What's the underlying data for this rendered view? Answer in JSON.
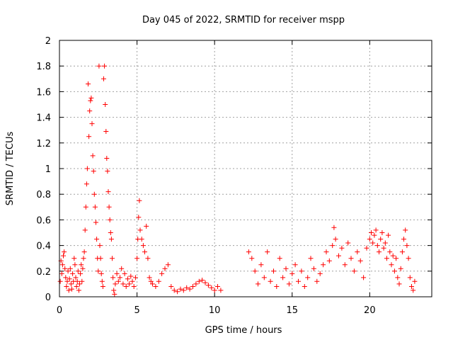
{
  "chart_data": {
    "type": "scatter",
    "title": "Day 045 of 2022, SRMTID for receiver mspp",
    "xlabel": "GPS time / hours",
    "ylabel": "SRMTID / TECUs",
    "xlim": [
      0,
      24
    ],
    "ylim": [
      0,
      2
    ],
    "xticks": [
      0,
      5,
      10,
      15,
      20
    ],
    "xtick_labels": [
      "0",
      "5",
      "10",
      "15",
      "20"
    ],
    "yticks": [
      0,
      0.2,
      0.4,
      0.6,
      0.8,
      1,
      1.2,
      1.4,
      1.6,
      1.8,
      2
    ],
    "ytick_labels": [
      "0",
      "0.2",
      "0.4",
      "0.6",
      "0.8",
      "1",
      "1.2",
      "1.4",
      "1.6",
      "1.8",
      "2"
    ],
    "grid": true,
    "marker": "plus",
    "color": "#ff0000",
    "series": [
      {
        "name": "SRMTID",
        "points": [
          [
            0.05,
            0.12
          ],
          [
            0.1,
            0.28
          ],
          [
            0.15,
            0.18
          ],
          [
            0.2,
            0.25
          ],
          [
            0.25,
            0.32
          ],
          [
            0.3,
            0.35
          ],
          [
            0.35,
            0.22
          ],
          [
            0.4,
            0.15
          ],
          [
            0.45,
            0.08
          ],
          [
            0.5,
            0.12
          ],
          [
            0.55,
            0.2
          ],
          [
            0.6,
            0.05
          ],
          [
            0.65,
            0.14
          ],
          [
            0.7,
            0.22
          ],
          [
            0.75,
            0.1
          ],
          [
            0.8,
            0.06
          ],
          [
            0.85,
            0.18
          ],
          [
            0.9,
            0.12
          ],
          [
            0.95,
            0.3
          ],
          [
            1.0,
            0.25
          ],
          [
            1.05,
            0.15
          ],
          [
            1.1,
            0.08
          ],
          [
            1.15,
            0.12
          ],
          [
            1.2,
            0.2
          ],
          [
            1.25,
            0.05
          ],
          [
            1.3,
            0.1
          ],
          [
            1.35,
            0.18
          ],
          [
            1.4,
            0.25
          ],
          [
            1.45,
            0.12
          ],
          [
            1.5,
            0.22
          ],
          [
            1.55,
            0.3
          ],
          [
            1.6,
            0.35
          ],
          [
            1.65,
            0.52
          ],
          [
            1.7,
            0.7
          ],
          [
            1.75,
            0.88
          ],
          [
            1.8,
            1.0
          ],
          [
            1.85,
            1.66
          ],
          [
            1.9,
            1.25
          ],
          [
            1.95,
            1.45
          ],
          [
            2.0,
            1.53
          ],
          [
            2.05,
            1.55
          ],
          [
            2.1,
            1.35
          ],
          [
            2.15,
            1.1
          ],
          [
            2.2,
            0.98
          ],
          [
            2.25,
            0.8
          ],
          [
            2.3,
            0.7
          ],
          [
            2.35,
            0.58
          ],
          [
            2.4,
            0.45
          ],
          [
            2.45,
            0.3
          ],
          [
            2.5,
            0.2
          ],
          [
            2.55,
            1.8
          ],
          [
            2.6,
            0.4
          ],
          [
            2.65,
            0.3
          ],
          [
            2.7,
            0.18
          ],
          [
            2.75,
            0.12
          ],
          [
            2.8,
            0.08
          ],
          [
            2.85,
            1.7
          ],
          [
            2.9,
            1.8
          ],
          [
            2.95,
            1.5
          ],
          [
            3.0,
            1.29
          ],
          [
            3.05,
            1.08
          ],
          [
            3.1,
            0.98
          ],
          [
            3.15,
            0.82
          ],
          [
            3.2,
            0.7
          ],
          [
            3.25,
            0.6
          ],
          [
            3.3,
            0.5
          ],
          [
            3.35,
            0.45
          ],
          [
            3.4,
            0.3
          ],
          [
            3.45,
            0.15
          ],
          [
            3.5,
            0.05
          ],
          [
            3.55,
            0.02
          ],
          [
            3.6,
            0.1
          ],
          [
            3.7,
            0.18
          ],
          [
            3.8,
            0.12
          ],
          [
            3.9,
            0.15
          ],
          [
            4.0,
            0.22
          ],
          [
            4.1,
            0.1
          ],
          [
            4.2,
            0.18
          ],
          [
            4.3,
            0.08
          ],
          [
            4.4,
            0.14
          ],
          [
            4.5,
            0.1
          ],
          [
            4.6,
            0.16
          ],
          [
            4.7,
            0.12
          ],
          [
            4.8,
            0.08
          ],
          [
            4.9,
            0.15
          ],
          [
            5.0,
            0.3
          ],
          [
            5.05,
            0.45
          ],
          [
            5.1,
            0.62
          ],
          [
            5.15,
            0.75
          ],
          [
            5.2,
            0.52
          ],
          [
            5.3,
            0.45
          ],
          [
            5.4,
            0.4
          ],
          [
            5.5,
            0.35
          ],
          [
            5.6,
            0.55
          ],
          [
            5.7,
            0.3
          ],
          [
            5.8,
            0.15
          ],
          [
            5.9,
            0.12
          ],
          [
            6.0,
            0.1
          ],
          [
            6.2,
            0.08
          ],
          [
            6.4,
            0.12
          ],
          [
            6.6,
            0.18
          ],
          [
            6.8,
            0.22
          ],
          [
            7.0,
            0.25
          ],
          [
            7.2,
            0.08
          ],
          [
            7.4,
            0.05
          ],
          [
            7.6,
            0.04
          ],
          [
            7.8,
            0.06
          ],
          [
            8.0,
            0.05
          ],
          [
            8.2,
            0.07
          ],
          [
            8.4,
            0.06
          ],
          [
            8.6,
            0.08
          ],
          [
            8.8,
            0.1
          ],
          [
            9.0,
            0.12
          ],
          [
            9.2,
            0.13
          ],
          [
            9.4,
            0.11
          ],
          [
            9.6,
            0.09
          ],
          [
            9.8,
            0.07
          ],
          [
            10.0,
            0.05
          ],
          [
            10.2,
            0.08
          ],
          [
            10.4,
            0.05
          ],
          [
            12.2,
            0.35
          ],
          [
            12.4,
            0.3
          ],
          [
            12.6,
            0.2
          ],
          [
            12.8,
            0.1
          ],
          [
            13.0,
            0.25
          ],
          [
            13.2,
            0.15
          ],
          [
            13.4,
            0.35
          ],
          [
            13.6,
            0.12
          ],
          [
            13.8,
            0.2
          ],
          [
            14.0,
            0.08
          ],
          [
            14.2,
            0.3
          ],
          [
            14.4,
            0.15
          ],
          [
            14.6,
            0.22
          ],
          [
            14.8,
            0.1
          ],
          [
            15.0,
            0.18
          ],
          [
            15.2,
            0.25
          ],
          [
            15.4,
            0.12
          ],
          [
            15.6,
            0.2
          ],
          [
            15.8,
            0.08
          ],
          [
            16.0,
            0.15
          ],
          [
            16.2,
            0.3
          ],
          [
            16.4,
            0.22
          ],
          [
            16.6,
            0.12
          ],
          [
            16.8,
            0.18
          ],
          [
            17.0,
            0.25
          ],
          [
            17.2,
            0.35
          ],
          [
            17.4,
            0.28
          ],
          [
            17.6,
            0.4
          ],
          [
            17.7,
            0.54
          ],
          [
            17.8,
            0.45
          ],
          [
            18.0,
            0.32
          ],
          [
            18.2,
            0.38
          ],
          [
            18.4,
            0.25
          ],
          [
            18.6,
            0.42
          ],
          [
            18.8,
            0.3
          ],
          [
            19.0,
            0.2
          ],
          [
            19.2,
            0.35
          ],
          [
            19.4,
            0.28
          ],
          [
            19.6,
            0.15
          ],
          [
            19.8,
            0.38
          ],
          [
            20.0,
            0.45
          ],
          [
            20.1,
            0.5
          ],
          [
            20.2,
            0.42
          ],
          [
            20.3,
            0.48
          ],
          [
            20.4,
            0.52
          ],
          [
            20.5,
            0.4
          ],
          [
            20.6,
            0.35
          ],
          [
            20.7,
            0.45
          ],
          [
            20.8,
            0.5
          ],
          [
            20.9,
            0.38
          ],
          [
            21.0,
            0.42
          ],
          [
            21.1,
            0.3
          ],
          [
            21.2,
            0.48
          ],
          [
            21.3,
            0.35
          ],
          [
            21.4,
            0.25
          ],
          [
            21.5,
            0.32
          ],
          [
            21.6,
            0.2
          ],
          [
            21.7,
            0.3
          ],
          [
            21.8,
            0.15
          ],
          [
            21.9,
            0.1
          ],
          [
            22.0,
            0.22
          ],
          [
            22.1,
            0.35
          ],
          [
            22.2,
            0.45
          ],
          [
            22.3,
            0.52
          ],
          [
            22.4,
            0.4
          ],
          [
            22.5,
            0.3
          ],
          [
            22.6,
            0.15
          ],
          [
            22.7,
            0.08
          ],
          [
            22.8,
            0.05
          ],
          [
            22.9,
            0.12
          ]
        ]
      }
    ]
  }
}
